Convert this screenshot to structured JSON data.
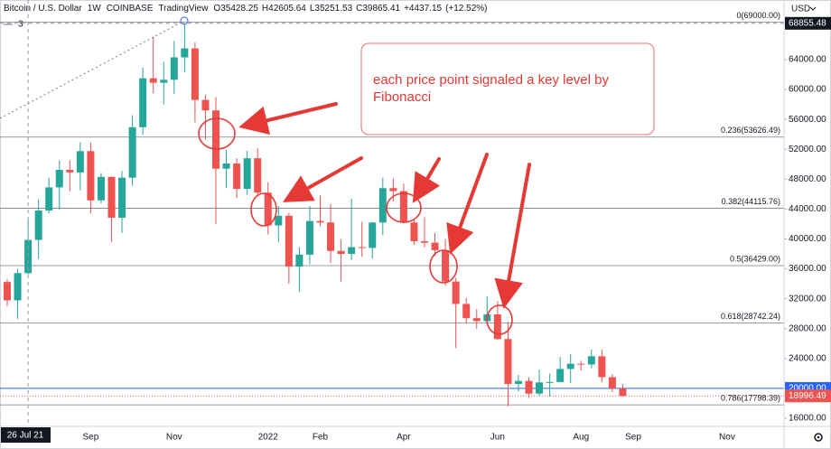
{
  "header": {
    "symbol": "Bitcoin / U.S. Dollar",
    "interval": "1W",
    "exchange": "COINBASE",
    "source": "TradingView",
    "readout": [
      {
        "value": 35428.25,
        "label": "O35428.25"
      },
      {
        "value": 42605.64,
        "label": "H42605.64"
      },
      {
        "value": 35251.53,
        "label": "L35251.53"
      },
      {
        "value": 39865.41,
        "label": "C39865.41"
      },
      {
        "value": 4437.15,
        "label": "+4437.15"
      },
      {
        "value": 12.52,
        "label": "(+12.52%)"
      }
    ]
  },
  "chart_data": {
    "type": "candlestick",
    "categories": [
      null,
      null,
      null,
      null,
      null,
      null,
      null,
      null,
      "Sep",
      null,
      null,
      null,
      null,
      null,
      null,
      null,
      "Nov",
      null,
      null,
      null,
      null,
      null,
      null,
      null,
      null,
      "2022",
      null,
      null,
      null,
      null,
      "Feb",
      null,
      null,
      null,
      null,
      null,
      null,
      null,
      "Apr",
      null,
      null,
      null,
      null,
      null,
      null,
      null,
      null,
      "Jun",
      null,
      null,
      null,
      null,
      null,
      null,
      null,
      "Aug",
      null,
      null,
      null,
      null,
      "Sep",
      null,
      null,
      null,
      null,
      null,
      null,
      null,
      null,
      "Nov",
      null,
      null,
      null,
      null,
      null
    ],
    "open": [
      34240,
      31780,
      35428.25,
      39865,
      43800,
      46900,
      49250,
      48900,
      51750,
      45160,
      48300,
      42840,
      48200,
      54950,
      61500,
      60900,
      61300,
      64300,
      65500,
      58600,
      57200,
      49400,
      50100,
      46700,
      50800,
      46200,
      41800,
      43100,
      36300,
      37900,
      42400,
      42200,
      38400,
      38000,
      38900,
      38800,
      42200,
      46800,
      46400,
      42200,
      39700,
      39500,
      38500,
      34300,
      31300,
      29400,
      29000,
      29900,
      26600,
      20600,
      21000,
      19300,
      20750,
      20850,
      22600,
      23300,
      23200,
      24300,
      21500,
      20000,
      null,
      null,
      null,
      null,
      null,
      null,
      null,
      null,
      null,
      null,
      null,
      null,
      null,
      null,
      null
    ],
    "high": [
      34590,
      35990,
      42605.64,
      45310,
      48150,
      50500,
      50500,
      52950,
      52920,
      48840,
      48370,
      49100,
      56560,
      62930,
      67000,
      63700,
      66500,
      68860,
      66300,
      59300,
      59000,
      51900,
      50800,
      51800,
      52100,
      47600,
      44400,
      43500,
      38900,
      44400,
      45800,
      44700,
      39900,
      45400,
      42300,
      42300,
      48200,
      48100,
      47400,
      42500,
      42900,
      40800,
      40000,
      34800,
      32100,
      30600,
      32300,
      31700,
      28900,
      21800,
      21500,
      22500,
      22000,
      24200,
      24600,
      23700,
      25200,
      25200,
      21900,
      20600,
      null,
      null,
      null,
      null,
      null,
      null,
      null,
      null,
      null,
      null,
      null,
      null,
      null,
      null,
      null
    ],
    "low": [
      31020,
      29300,
      35251.53,
      37330,
      43400,
      43900,
      46400,
      46500,
      43370,
      44740,
      39600,
      40800,
      47100,
      53900,
      59500,
      58000,
      59400,
      62300,
      55600,
      53300,
      42000,
      46800,
      45500,
      45900,
      45700,
      40600,
      39600,
      34000,
      32900,
      36600,
      41700,
      36800,
      34300,
      37200,
      37600,
      37400,
      40500,
      45000,
      42100,
      39200,
      38900,
      37700,
      33700,
      25400,
      28700,
      28000,
      28900,
      26500,
      17600,
      19600,
      18700,
      19000,
      18900,
      20850,
      20700,
      22400,
      22700,
      20800,
      19500,
      18900,
      null,
      null,
      null,
      null,
      null,
      null,
      null,
      null,
      null,
      null,
      null,
      null,
      null,
      null,
      null
    ],
    "close": [
      31780,
      35428,
      39865.41,
      43800,
      46900,
      49250,
      48900,
      51750,
      45160,
      48300,
      42840,
      48200,
      54950,
      61500,
      60900,
      61300,
      64300,
      65500,
      58600,
      57200,
      49400,
      50100,
      46700,
      50800,
      46200,
      41800,
      43100,
      36300,
      37900,
      42400,
      42200,
      38400,
      38000,
      38900,
      38800,
      42200,
      46800,
      46400,
      42200,
      39700,
      39500,
      38500,
      34300,
      31300,
      29400,
      29000,
      29900,
      26600,
      20600,
      21000,
      19300,
      20800,
      20850,
      22600,
      23300,
      23200,
      24300,
      21500,
      20000,
      18996.49,
      null,
      null,
      null,
      null,
      null,
      null,
      null,
      null,
      null,
      null,
      null,
      null,
      null,
      null,
      null
    ],
    "up_color": "#26a69a",
    "down_color": "#ef5350",
    "ylim": [
      14912,
      71976
    ],
    "yticks": [
      {
        "value": 16000,
        "label": "16000.00"
      },
      {
        "value": 24000,
        "label": "24000.00"
      },
      {
        "value": 28000,
        "label": "28000.00"
      },
      {
        "value": 32000,
        "label": "32000.00"
      },
      {
        "value": 36000,
        "label": "36000.00"
      },
      {
        "value": 40000,
        "label": "40000.00"
      },
      {
        "value": 44000,
        "label": "44000.00"
      },
      {
        "value": 48000,
        "label": "48000.00"
      },
      {
        "value": 52000,
        "label": "52000.00"
      },
      {
        "value": 56000,
        "label": "56000.00"
      },
      {
        "value": 60000,
        "label": "60000.00"
      },
      {
        "value": 64000,
        "label": "64000.00"
      }
    ],
    "currency": "USD",
    "fib_levels": [
      {
        "value": 69000,
        "label": "0(69000.00)"
      },
      {
        "value": 53626.49,
        "label": "0.236(53626.49)"
      },
      {
        "value": 44115.76,
        "label": "0.382(44115.76)"
      },
      {
        "value": 36429,
        "label": "0.5(36429.00)"
      },
      {
        "value": 28742.24,
        "label": "0.618(28742.24)"
      },
      {
        "value": 17798.39,
        "label": "0.786(17798.39)"
      }
    ],
    "fib_color": "#787b86",
    "hline": {
      "value": 20000,
      "label": "20000.00",
      "color": "#2962ff"
    },
    "last_price": {
      "value": 18996.49,
      "label": "18996.49",
      "color": "#ef5350"
    },
    "crosshair": {
      "x_label": "26 Jul 21",
      "y": {
        "value": 68855.48,
        "label": "68855.48"
      }
    },
    "drawing_label": "3",
    "annotation": [
      "each price point signaled a key level by",
      "Fibonacci"
    ]
  }
}
